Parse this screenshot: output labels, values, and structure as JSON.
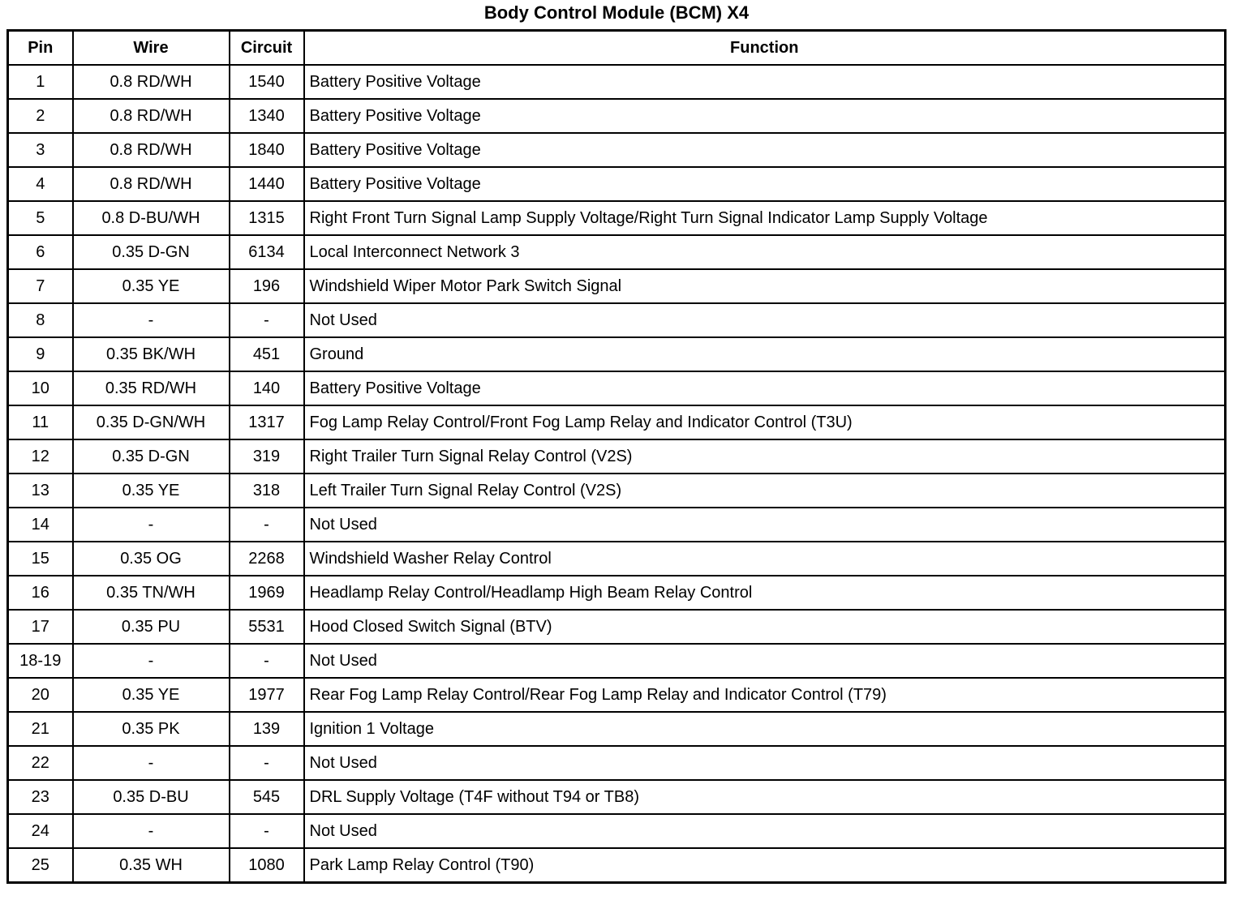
{
  "title": "Body Control Module (BCM) X4",
  "table": {
    "headers": [
      "Pin",
      "Wire",
      "Circuit",
      "Function"
    ],
    "rows": [
      {
        "pin": "1",
        "wire": "0.8 RD/WH",
        "circuit": "1540",
        "function": "Battery Positive Voltage"
      },
      {
        "pin": "2",
        "wire": "0.8 RD/WH",
        "circuit": "1340",
        "function": "Battery Positive Voltage"
      },
      {
        "pin": "3",
        "wire": "0.8 RD/WH",
        "circuit": "1840",
        "function": "Battery Positive Voltage"
      },
      {
        "pin": "4",
        "wire": "0.8 RD/WH",
        "circuit": "1440",
        "function": "Battery Positive Voltage"
      },
      {
        "pin": "5",
        "wire": "0.8 D-BU/WH",
        "circuit": "1315",
        "function": "Right Front Turn Signal Lamp Supply Voltage/Right Turn Signal Indicator Lamp Supply Voltage"
      },
      {
        "pin": "6",
        "wire": "0.35 D-GN",
        "circuit": "6134",
        "function": "Local Interconnect Network 3"
      },
      {
        "pin": "7",
        "wire": "0.35 YE",
        "circuit": "196",
        "function": "Windshield Wiper Motor Park Switch Signal"
      },
      {
        "pin": "8",
        "wire": "-",
        "circuit": "-",
        "function": "Not Used"
      },
      {
        "pin": "9",
        "wire": "0.35 BK/WH",
        "circuit": "451",
        "function": "Ground"
      },
      {
        "pin": "10",
        "wire": "0.35 RD/WH",
        "circuit": "140",
        "function": "Battery Positive Voltage"
      },
      {
        "pin": "11",
        "wire": "0.35 D-GN/WH",
        "circuit": "1317",
        "function": "Fog Lamp Relay Control/Front Fog Lamp Relay and Indicator Control (T3U)"
      },
      {
        "pin": "12",
        "wire": "0.35 D-GN",
        "circuit": "319",
        "function": "Right Trailer Turn Signal Relay Control (V2S)"
      },
      {
        "pin": "13",
        "wire": "0.35 YE",
        "circuit": "318",
        "function": "Left Trailer Turn Signal Relay Control (V2S)"
      },
      {
        "pin": "14",
        "wire": "-",
        "circuit": "-",
        "function": "Not Used"
      },
      {
        "pin": "15",
        "wire": "0.35 OG",
        "circuit": "2268",
        "function": "Windshield Washer Relay Control"
      },
      {
        "pin": "16",
        "wire": "0.35 TN/WH",
        "circuit": "1969",
        "function": "Headlamp Relay Control/Headlamp High Beam Relay Control"
      },
      {
        "pin": "17",
        "wire": "0.35 PU",
        "circuit": "5531",
        "function": "Hood Closed Switch Signal (BTV)"
      },
      {
        "pin": "18-19",
        "wire": "-",
        "circuit": "-",
        "function": "Not Used"
      },
      {
        "pin": "20",
        "wire": "0.35 YE",
        "circuit": "1977",
        "function": "Rear Fog Lamp Relay Control/Rear Fog Lamp Relay and Indicator Control (T79)"
      },
      {
        "pin": "21",
        "wire": "0.35 PK",
        "circuit": "139",
        "function": "Ignition 1 Voltage"
      },
      {
        "pin": "22",
        "wire": "-",
        "circuit": "-",
        "function": "Not Used"
      },
      {
        "pin": "23",
        "wire": "0.35 D-BU",
        "circuit": "545",
        "function": "DRL Supply Voltage (T4F without T94 or TB8)"
      },
      {
        "pin": "24",
        "wire": "-",
        "circuit": "-",
        "function": "Not Used"
      },
      {
        "pin": "25",
        "wire": "0.35 WH",
        "circuit": "1080",
        "function": "Park Lamp Relay Control (T90)"
      }
    ]
  }
}
